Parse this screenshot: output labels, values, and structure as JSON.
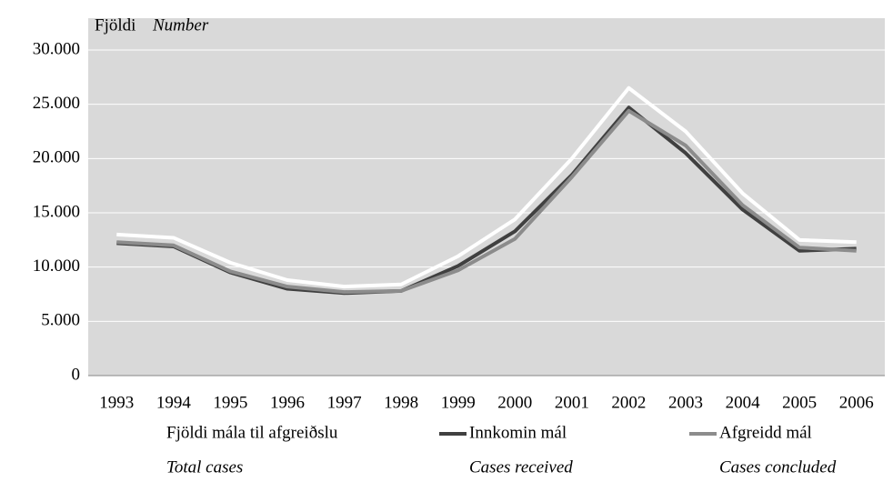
{
  "chart_data": {
    "type": "line",
    "ylabel": "Fjöldi",
    "ylabel_en": "Number",
    "categories": [
      "1993",
      "1994",
      "1995",
      "1996",
      "1997",
      "1998",
      "1999",
      "2000",
      "2001",
      "2002",
      "2003",
      "2004",
      "2005",
      "2006"
    ],
    "series": [
      {
        "name": "Fjöldi mála til afgreiðslu",
        "name_en": "Total cases",
        "color": "#ffffff",
        "values": [
          13000,
          12700,
          10400,
          8800,
          8200,
          8400,
          11000,
          14400,
          20000,
          26500,
          22500,
          16800,
          12500,
          12300
        ]
      },
      {
        "name": "Innkomin mál",
        "name_en": "Cases received",
        "color": "#404040",
        "values": [
          12200,
          11900,
          9500,
          8000,
          7600,
          7800,
          10100,
          13300,
          18500,
          24700,
          20500,
          15300,
          11500,
          11700
        ]
      },
      {
        "name": "Afgreidd mál",
        "name_en": "Cases concluded",
        "color": "#8c8c8c",
        "values": [
          12300,
          12000,
          9600,
          8200,
          7700,
          7800,
          9700,
          12600,
          18300,
          24400,
          21200,
          15700,
          11800,
          11500
        ]
      }
    ],
    "ylim": [
      0,
      30000
    ],
    "yticks": [
      0,
      {
        "value": 5000,
        "label": "5.000"
      },
      {
        "value": 10000,
        "label": "10.000"
      },
      {
        "value": 15000,
        "label": "15.000"
      },
      {
        "value": 20000,
        "label": "20.000"
      },
      {
        "value": 25000,
        "label": "25.000"
      },
      {
        "value": 30000,
        "label": "30.000"
      }
    ],
    "grid": true
  }
}
